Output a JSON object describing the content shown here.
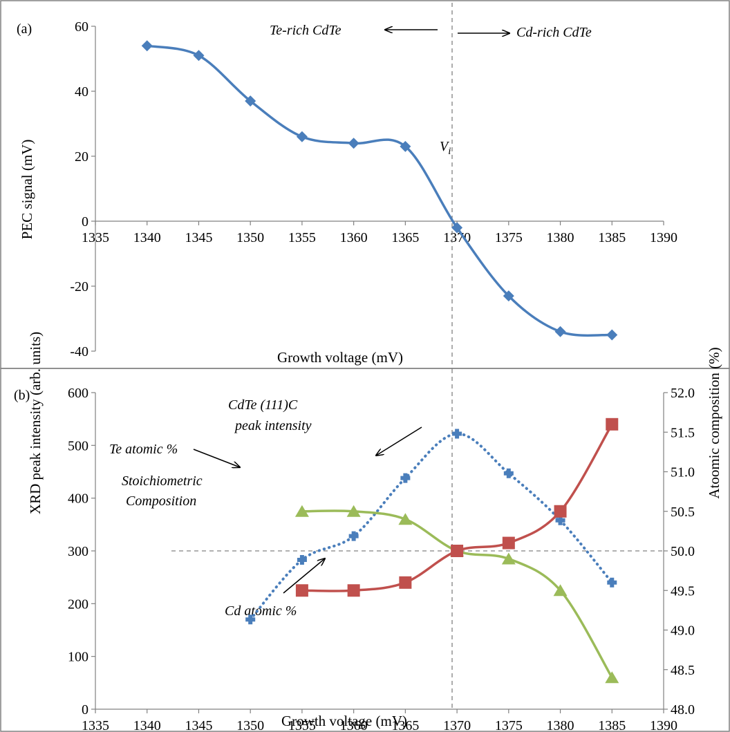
{
  "chart_data": [
    {
      "type": "line",
      "panel_label": "(a)",
      "xlabel": "Growth voltage (mV)",
      "ylabel": "PEC signal (mV)",
      "xlim": [
        1335,
        1390
      ],
      "ylim": [
        -40,
        60
      ],
      "xticks": [
        "1335",
        "1340",
        "1345",
        "1350",
        "1355",
        "1360",
        "1365",
        "1370",
        "1375",
        "1380",
        "1385",
        "1390"
      ],
      "yticks": [
        "-40",
        "-20",
        "0",
        "20",
        "40",
        "60"
      ],
      "grid": false,
      "series": [
        {
          "name": "",
          "color": "#4A7EBB",
          "marker": "diamond",
          "x": [
            1340,
            1345,
            1350,
            1355,
            1360,
            1365,
            1370,
            1375,
            1380,
            1385
          ],
          "y": [
            54,
            51,
            37,
            26,
            24,
            23,
            -2,
            -23,
            -34,
            -35
          ]
        }
      ],
      "annotations": {
        "te_rich": "Te-rich CdTe",
        "cd_rich": "Cd-rich CdTe",
        "vi": "V",
        "vi_sub": "i"
      },
      "vline_x": 1370
    },
    {
      "type": "line",
      "panel_label": "(b)",
      "xlabel": "Growth voltage (mV)",
      "ylabel": "XRD peak intensity (arb. units)",
      "ylabel_right": "Atoomic composition (%)",
      "xlim": [
        1335,
        1390
      ],
      "ylim": [
        0,
        600
      ],
      "ylim_right": [
        48.0,
        52.0
      ],
      "xticks": [
        "1335",
        "1340",
        "1345",
        "1350",
        "1355",
        "1360",
        "1365",
        "1370",
        "1375",
        "1380",
        "1385",
        "1390"
      ],
      "yticks": [
        "0",
        "100",
        "200",
        "300",
        "400",
        "500",
        "600"
      ],
      "yticks_right": [
        "48.0",
        "48.5",
        "49.0",
        "49.5",
        "50.0",
        "50.5",
        "51.0",
        "51.5",
        "52.0"
      ],
      "grid": false,
      "series": [
        {
          "name": "",
          "axis": "left",
          "color": "#4A7EBB",
          "style": "dotted",
          "marker": "plus",
          "x": [
            1350,
            1355,
            1360,
            1365,
            1370,
            1375,
            1380,
            1385
          ],
          "y": [
            170,
            283,
            328,
            438,
            522,
            447,
            358,
            240
          ]
        },
        {
          "name": "",
          "axis": "right",
          "color": "#9BBB59",
          "marker": "triangle",
          "x": [
            1355,
            1360,
            1365,
            1370,
            1375,
            1380,
            1385
          ],
          "y": [
            50.5,
            50.5,
            50.4,
            50.0,
            49.9,
            49.5,
            48.4
          ]
        },
        {
          "name": "",
          "axis": "right",
          "color": "#C0504D",
          "marker": "square",
          "x": [
            1355,
            1360,
            1365,
            1370,
            1375,
            1380,
            1385
          ],
          "y": [
            49.5,
            49.5,
            49.6,
            50.0,
            50.1,
            50.5,
            51.6
          ]
        }
      ],
      "annotations": {
        "xrd_1": "CdTe (111)C",
        "xrd_2": "peak intensity",
        "te": "Te atomic %",
        "stoich_1": "Stoichiometric",
        "stoich_2": "Composition",
        "cd": "Cd atomic %"
      },
      "hline_right": 50.0,
      "vline_x": 1370
    }
  ]
}
